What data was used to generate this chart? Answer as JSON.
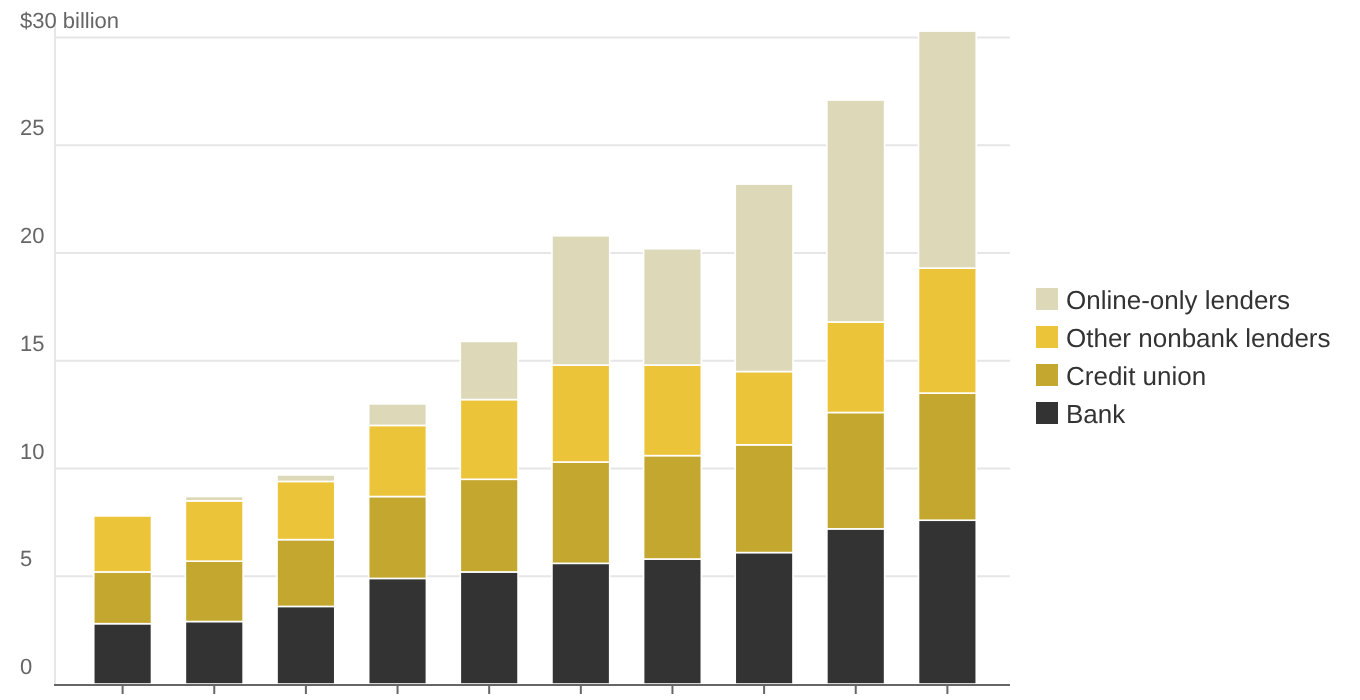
{
  "chart_data": {
    "type": "bar",
    "stacked": true,
    "categories": [
      null,
      null,
      null,
      null,
      null,
      null,
      null,
      null,
      null,
      null
    ],
    "series": [
      {
        "name": "Bank",
        "color": "#333333",
        "values": [
          2.8,
          2.9,
          3.6,
          4.9,
          5.2,
          5.6,
          5.8,
          6.1,
          7.2,
          7.6
        ]
      },
      {
        "name": "Credit union",
        "color": "#c4a72f",
        "values": [
          2.4,
          2.8,
          3.1,
          3.8,
          4.3,
          4.7,
          4.8,
          5.0,
          5.4,
          5.9
        ]
      },
      {
        "name": "Other nonbank lenders",
        "color": "#ecc43a",
        "values": [
          2.6,
          2.8,
          2.7,
          3.3,
          3.7,
          4.5,
          4.2,
          3.4,
          4.2,
          5.8
        ]
      },
      {
        "name": "Online-only lenders",
        "color": "#ddd9b8",
        "values": [
          0,
          0.2,
          0.3,
          1.0,
          2.7,
          6.0,
          5.4,
          8.7,
          10.3,
          11.0
        ]
      }
    ],
    "ylim": [
      0,
      31
    ],
    "yticks": [
      0,
      5,
      10,
      15,
      20,
      25,
      {
        "value": 30,
        "label": "$30 billion"
      }
    ],
    "grid": "y",
    "legend": "right"
  }
}
